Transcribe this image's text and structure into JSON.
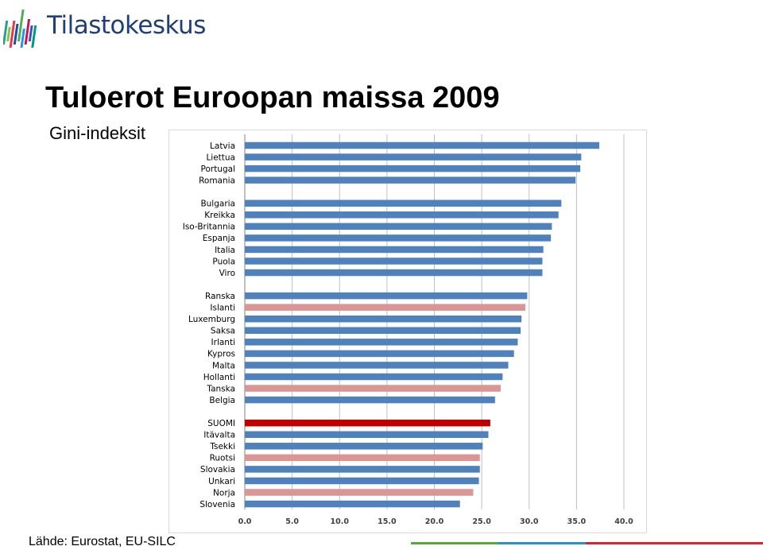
{
  "header": {
    "logo_text": "Tilastokeskus",
    "title": "Tuloerot Euroopan maissa 2009",
    "subtitle": "Gini-indeksit"
  },
  "footer": {
    "source": "Lähde: Eurostat, EU-SILC"
  },
  "colors": {
    "default_bar": "#4f81bd",
    "nordic_bar": "#d99694",
    "finland_bar": "#c00000",
    "gridline": "#bfbfbf",
    "logo_stripes": [
      "#3a7bd5",
      "#2a9d8f",
      "#8bc34a",
      "#e63946",
      "#1f4e9c",
      "#4caf50",
      "#2196f3",
      "#c2185b",
      "#3f51b5",
      "#009688"
    ]
  },
  "chart_data": {
    "type": "bar",
    "orientation": "horizontal",
    "title": "Tuloerot Euroopan maissa 2009",
    "subtitle": "Gini-indeksit",
    "xlim": [
      0,
      40
    ],
    "xticks": [
      "0.0",
      "5.0",
      "10.0",
      "15.0",
      "20.0",
      "25.0",
      "30.0",
      "35.0",
      "40.0"
    ],
    "grid": true,
    "groups": [
      [
        {
          "label": "Latvia",
          "value": 37.4,
          "highlight": "none"
        },
        {
          "label": "Liettua",
          "value": 35.5,
          "highlight": "none"
        },
        {
          "label": "Portugal",
          "value": 35.4,
          "highlight": "none"
        },
        {
          "label": "Romania",
          "value": 34.9,
          "highlight": "none"
        }
      ],
      [
        {
          "label": "Bulgaria",
          "value": 33.4,
          "highlight": "none"
        },
        {
          "label": "Kreikka",
          "value": 33.1,
          "highlight": "none"
        },
        {
          "label": "Iso-Britannia",
          "value": 32.4,
          "highlight": "none"
        },
        {
          "label": "Espanja",
          "value": 32.3,
          "highlight": "none"
        },
        {
          "label": "Italia",
          "value": 31.5,
          "highlight": "none"
        },
        {
          "label": "Puola",
          "value": 31.4,
          "highlight": "none"
        },
        {
          "label": "Viro",
          "value": 31.4,
          "highlight": "none"
        }
      ],
      [
        {
          "label": "Ranska",
          "value": 29.8,
          "highlight": "none"
        },
        {
          "label": "Islanti",
          "value": 29.6,
          "highlight": "nordic"
        },
        {
          "label": "Luxemburg",
          "value": 29.2,
          "highlight": "none"
        },
        {
          "label": "Saksa",
          "value": 29.1,
          "highlight": "none"
        },
        {
          "label": "Irlanti",
          "value": 28.8,
          "highlight": "none"
        },
        {
          "label": "Kypros",
          "value": 28.4,
          "highlight": "none"
        },
        {
          "label": "Malta",
          "value": 27.8,
          "highlight": "none"
        },
        {
          "label": "Hollanti",
          "value": 27.2,
          "highlight": "none"
        },
        {
          "label": "Tanska",
          "value": 27.0,
          "highlight": "nordic"
        },
        {
          "label": "Belgia",
          "value": 26.4,
          "highlight": "none"
        }
      ],
      [
        {
          "label": "SUOMI",
          "value": 25.9,
          "highlight": "finland"
        },
        {
          "label": "Itävalta",
          "value": 25.7,
          "highlight": "none"
        },
        {
          "label": "Tsekki",
          "value": 25.1,
          "highlight": "none"
        },
        {
          "label": "Ruotsi",
          "value": 24.8,
          "highlight": "nordic"
        },
        {
          "label": "Slovakia",
          "value": 24.8,
          "highlight": "none"
        },
        {
          "label": "Unkari",
          "value": 24.7,
          "highlight": "none"
        },
        {
          "label": "Norja",
          "value": 24.1,
          "highlight": "nordic"
        },
        {
          "label": "Slovenia",
          "value": 22.7,
          "highlight": "none"
        }
      ]
    ]
  }
}
